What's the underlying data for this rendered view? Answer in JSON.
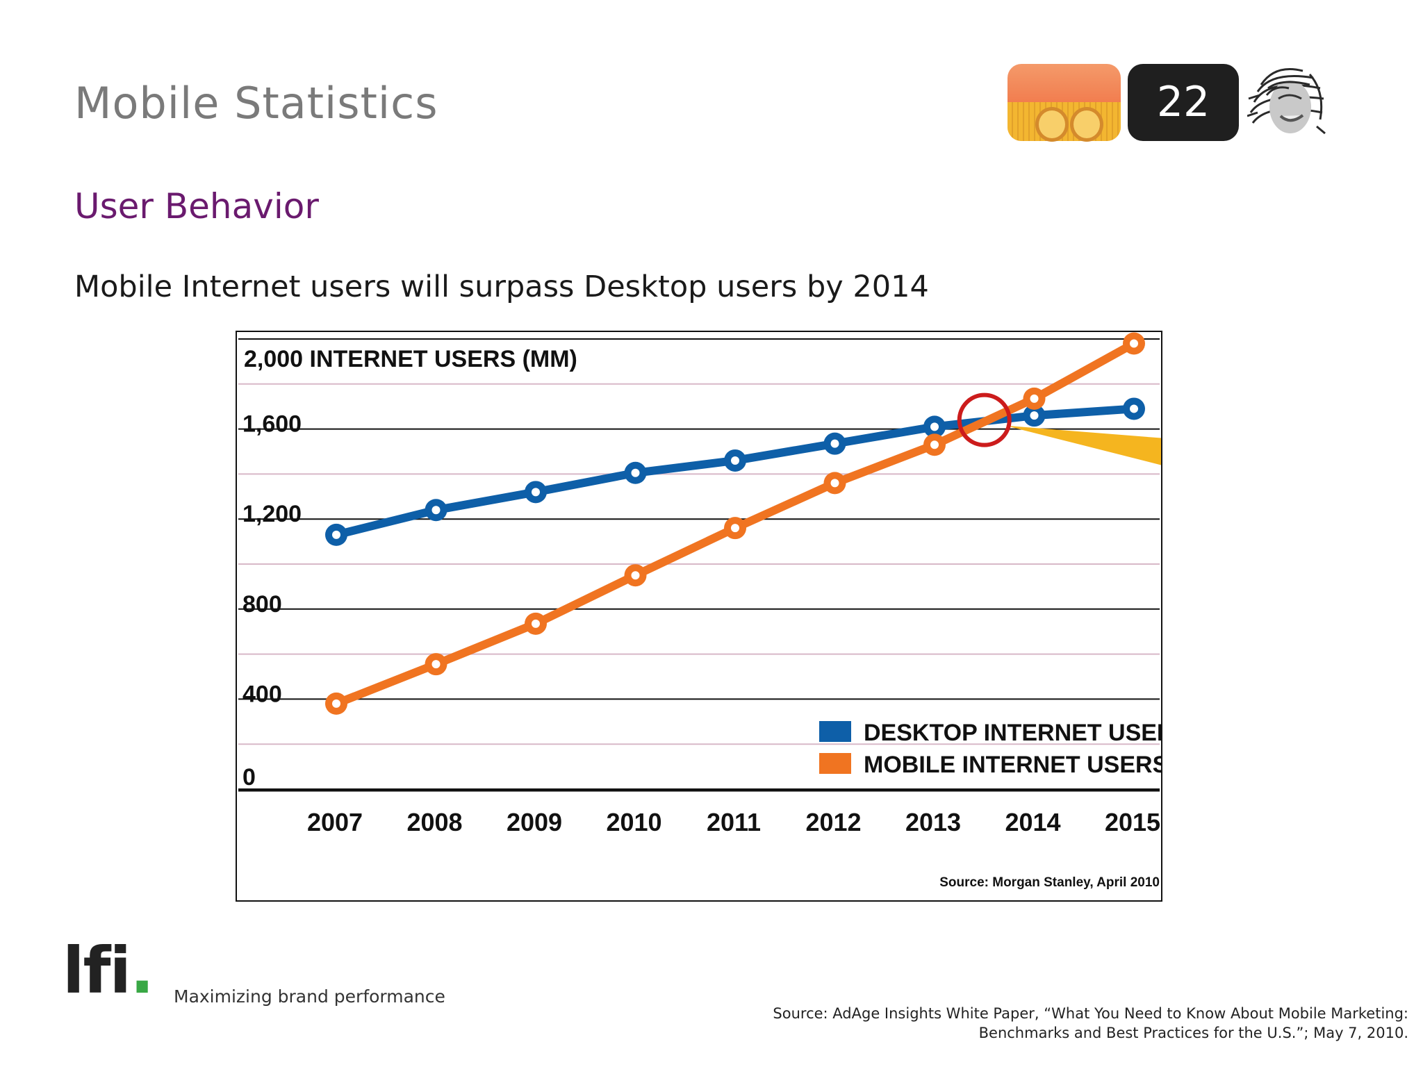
{
  "slide": {
    "title": "Mobile Statistics",
    "page_number": "22",
    "subtitle": "User Behavior",
    "body": "Mobile Internet users will surpass Desktop users by 2014"
  },
  "footer": {
    "logo_text": "lfi",
    "logo_dot": ".",
    "tagline": "Maximizing brand performance",
    "source_line1": "Source: AdAge Insights White Paper, “What You Need to Know About Mobile Marketing:",
    "source_line2": "Benchmarks and Best Practices for the U.S.”; May 7, 2010."
  },
  "colors": {
    "title": "#7a7a7a",
    "subtitle": "#6a1a6e",
    "desktop": "#0e5fa8",
    "mobile": "#f07421",
    "crossover_circle": "#cc1c1c",
    "highlight_wedge": "#f5b51f",
    "logo_dot": "#39a845"
  },
  "icons": [
    "app-icon",
    "page-badge",
    "avatar-photo"
  ],
  "chart_data": {
    "type": "line",
    "title": "2,000 INTERNET USERS (MM)",
    "xlabel": "",
    "ylabel": "INTERNET USERS (MM)",
    "categories": [
      "2007",
      "2008",
      "2009",
      "2010",
      "2011",
      "2012",
      "2013",
      "2014",
      "2015"
    ],
    "y_tick_labels": [
      "0",
      "400",
      "800",
      "1,200",
      "1,600",
      "2,000"
    ],
    "y_tick_values": [
      0,
      400,
      800,
      1200,
      1600,
      2000
    ],
    "ylim": [
      0,
      2000
    ],
    "series": [
      {
        "name": "DESKTOP INTERNET USERS",
        "color": "#0e5fa8",
        "values": [
          1130,
          1240,
          1320,
          1405,
          1460,
          1535,
          1610,
          1660,
          1690
        ]
      },
      {
        "name": "MOBILE INTERNET USERS",
        "color": "#f07421",
        "values": [
          380,
          555,
          735,
          950,
          1160,
          1360,
          1530,
          1735,
          1980
        ]
      }
    ],
    "annotations": [
      "crossover circle between 2013 and 2014"
    ],
    "legend_position": "bottom-right",
    "source": "Source: Morgan Stanley, April 2010",
    "grid": true
  }
}
